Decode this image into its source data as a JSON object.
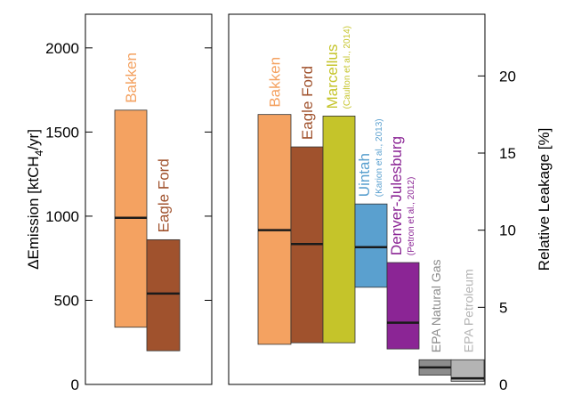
{
  "chart_data": [
    {
      "type": "bar",
      "panel": "left",
      "ylabel_prefix": "ΔEmission [ktCH",
      "ylabel_sub": "4",
      "ylabel_suffix": "/yr]",
      "ylim": [
        0,
        2200
      ],
      "yticks": [
        0,
        500,
        1000,
        1500,
        2000
      ],
      "series": [
        {
          "name": "Bakken",
          "low": 340,
          "high": 1630,
          "median": 990,
          "color": "#F4A261"
        },
        {
          "name": "Eagle Ford",
          "low": 200,
          "high": 860,
          "median": 540,
          "color": "#A0522D"
        }
      ]
    },
    {
      "type": "bar",
      "panel": "right",
      "ylabel": "Relative Leakage [%]",
      "ylim": [
        0,
        24
      ],
      "yticks": [
        0,
        5,
        10,
        15,
        20
      ],
      "series": [
        {
          "name": "Bakken",
          "ref": "",
          "low": 2.6,
          "high": 17.5,
          "median": 10.0,
          "color": "#F4A261",
          "label_color": "#F4A261"
        },
        {
          "name": "Eagle Ford",
          "ref": "",
          "low": 2.7,
          "high": 15.4,
          "median": 9.1,
          "color": "#A0522D",
          "label_color": "#A0522D"
        },
        {
          "name": "Marcellus",
          "ref": "(Caulton et al., 2014)",
          "low": 2.7,
          "high": 17.4,
          "median": null,
          "color": "#C5C42A",
          "label_color": "#C5C42A"
        },
        {
          "name": "Uintah",
          "ref": "(Karion et al., 2013)",
          "low": 6.3,
          "high": 11.7,
          "median": 8.9,
          "color": "#5AA0CF",
          "label_color": "#5AA0CF"
        },
        {
          "name": "Denver-Julesburg",
          "ref": "(Petron et al., 2012)",
          "low": 2.3,
          "high": 7.9,
          "median": 4.0,
          "color": "#8B2595",
          "label_color": "#8B2595"
        },
        {
          "name": "EPA Natural Gas",
          "ref": "",
          "low": 0.6,
          "high": 1.6,
          "median": 1.1,
          "color": "#8C8C8C",
          "label_color": "#8C8C8C"
        },
        {
          "name": "EPA Petroleum",
          "ref": "",
          "low": 0.2,
          "high": 1.6,
          "median": 0.4,
          "color": "#B4B4B4",
          "label_color": "#B4B4B4"
        }
      ]
    }
  ]
}
